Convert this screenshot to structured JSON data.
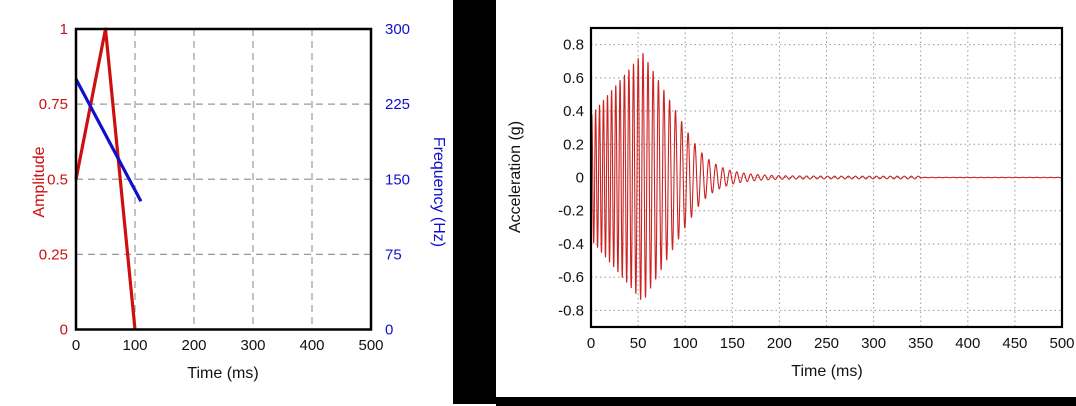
{
  "figure": {
    "background": "#ffffff",
    "divider_color": "#000000",
    "frame_color": "#000000",
    "grid_color": "#999999",
    "text_color": "#111111"
  },
  "chart_data": [
    {
      "type": "line",
      "name": "input-pulse-chart",
      "xlabel": "Time (ms)",
      "xlim": [
        0,
        500
      ],
      "xticks": [
        0,
        100,
        200,
        300,
        400,
        500
      ],
      "xtick_labels": [
        "0",
        "100",
        "200",
        "300",
        "400",
        "500"
      ],
      "grid": "dashed",
      "legend_position": "none",
      "axes": {
        "left": {
          "label": "Amplitude",
          "color": "#cc1010",
          "lim": [
            0,
            1
          ],
          "ticks": [
            0,
            0.25,
            0.5,
            0.75,
            1
          ],
          "tick_labels": [
            "0",
            "0.25",
            "0.5",
            "0.75",
            "1"
          ]
        },
        "right": {
          "label": "Frequency (Hz)",
          "color": "#1010cc",
          "lim": [
            0,
            300
          ],
          "ticks": [
            0,
            75,
            150,
            225,
            300
          ],
          "tick_labels": [
            "0",
            "75",
            "150",
            "225",
            "300"
          ]
        }
      },
      "series": [
        {
          "name": "Amplitude",
          "axis": "left",
          "color": "#cc1010",
          "points": [
            [
              0,
              0.5
            ],
            [
              50,
              1.0
            ],
            [
              100,
              0
            ]
          ]
        },
        {
          "name": "Frequency (Hz)",
          "axis": "right",
          "color": "#1010cc",
          "points": [
            [
              0,
              250
            ],
            [
              110,
              128
            ]
          ]
        }
      ]
    },
    {
      "type": "line",
      "name": "acceleration-response-chart",
      "xlabel": "Time (ms)",
      "ylabel": "Acceleration (g)",
      "xlim": [
        0,
        500
      ],
      "ylim": [
        -0.9,
        0.9
      ],
      "xticks": [
        0,
        50,
        100,
        150,
        200,
        250,
        300,
        350,
        400,
        450,
        500
      ],
      "xtick_labels": [
        "0",
        "50",
        "100",
        "150",
        "200",
        "250",
        "300",
        "350",
        "400",
        "450",
        "500"
      ],
      "yticks": [
        -0.8,
        -0.6,
        -0.4,
        -0.2,
        0,
        0.2,
        0.4,
        0.6,
        0.8
      ],
      "ytick_labels": [
        "-0.8",
        "-0.6",
        "-0.4",
        "-0.2",
        "0",
        "0.2",
        "0.4",
        "0.6",
        "0.8"
      ],
      "grid": "dotted",
      "legend_position": "none",
      "series": [
        {
          "name": "Acceleration",
          "color": "#cc2222",
          "waveform": {
            "kind": "swept-sine burst with ringdown",
            "f0_hz": 250,
            "f1_hz": 135,
            "sweep_end_ms": 110,
            "envelope_g": [
              [
                0,
                0.375
              ],
              [
                55,
                0.75
              ],
              [
                105,
                0.25
              ]
            ],
            "peak_g": 0.75,
            "ringdown_tau_ms": 22,
            "residual_ripple_g": 0.008,
            "quiet_after_ms": 350
          }
        }
      ]
    }
  ]
}
